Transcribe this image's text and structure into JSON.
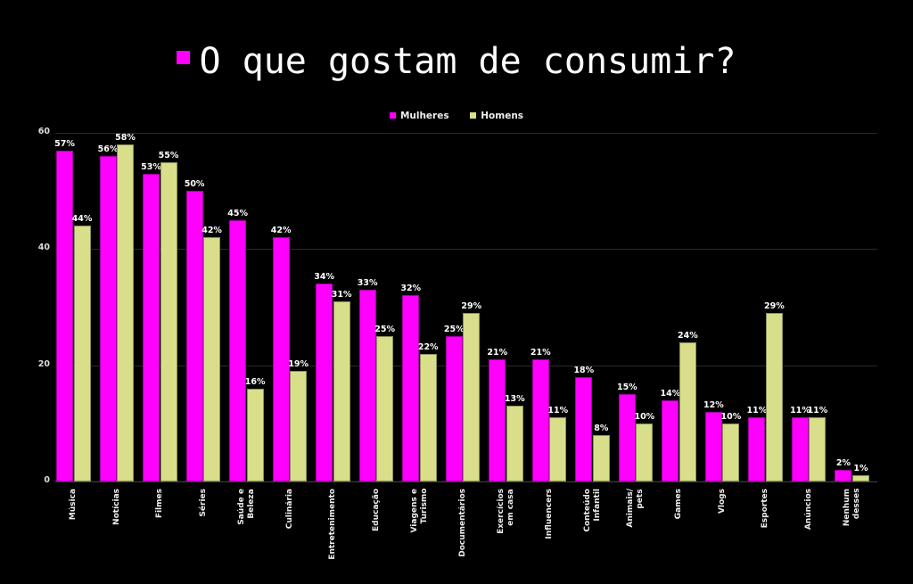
{
  "title": "O que gostam de consumir?",
  "legend": [
    {
      "label": "Mulheres",
      "color": "#ff00ff"
    },
    {
      "label": "Homens",
      "color": "#d9de8a"
    }
  ],
  "y_ticks": [
    "0",
    "20",
    "40",
    "60"
  ],
  "chart_data": {
    "type": "bar",
    "title": "O que gostam de consumir?",
    "xlabel": "",
    "ylabel": "",
    "ylim": [
      0,
      60
    ],
    "grid": true,
    "legend_position": "top",
    "categories": [
      "Música",
      "Notícias",
      "Filmes",
      "Séries",
      "Saúde e Beleza",
      "Culinária",
      "Entretenimento",
      "Educação",
      "Viagens e Turismo",
      "Documentários",
      "Exercícios em casa",
      "Influencers",
      "Conteúdo Infantil",
      "Animais/ pets",
      "Games",
      "Vlogs",
      "Esportes",
      "Anúncios",
      "Nenhum desses"
    ],
    "series": [
      {
        "name": "Mulheres",
        "color": "#ff00ff",
        "values": [
          57,
          56,
          53,
          50,
          45,
          42,
          34,
          33,
          32,
          25,
          21,
          21,
          18,
          15,
          14,
          12,
          11,
          11,
          2
        ]
      },
      {
        "name": "Homens",
        "color": "#d9de8a",
        "values": [
          44,
          58,
          55,
          42,
          16,
          19,
          31,
          25,
          22,
          29,
          13,
          11,
          8,
          10,
          24,
          10,
          29,
          11,
          1
        ]
      }
    ],
    "value_labels_suffix": "%"
  },
  "x_labels": [
    "Música",
    "Notícias",
    "Filmes",
    "Séries",
    "Saúde e\nBeleza",
    "Culinária",
    "Entretenimento",
    "Educação",
    "Viagens e\nTurismo",
    "Documentários",
    "Exercícios\nem casa",
    "Influencers",
    "Conteúdo\nInfantil",
    "Animais/\npets",
    "Games",
    "Vlogs",
    "Esportes",
    "Anúncios",
    "Nenhum\ndesses"
  ]
}
